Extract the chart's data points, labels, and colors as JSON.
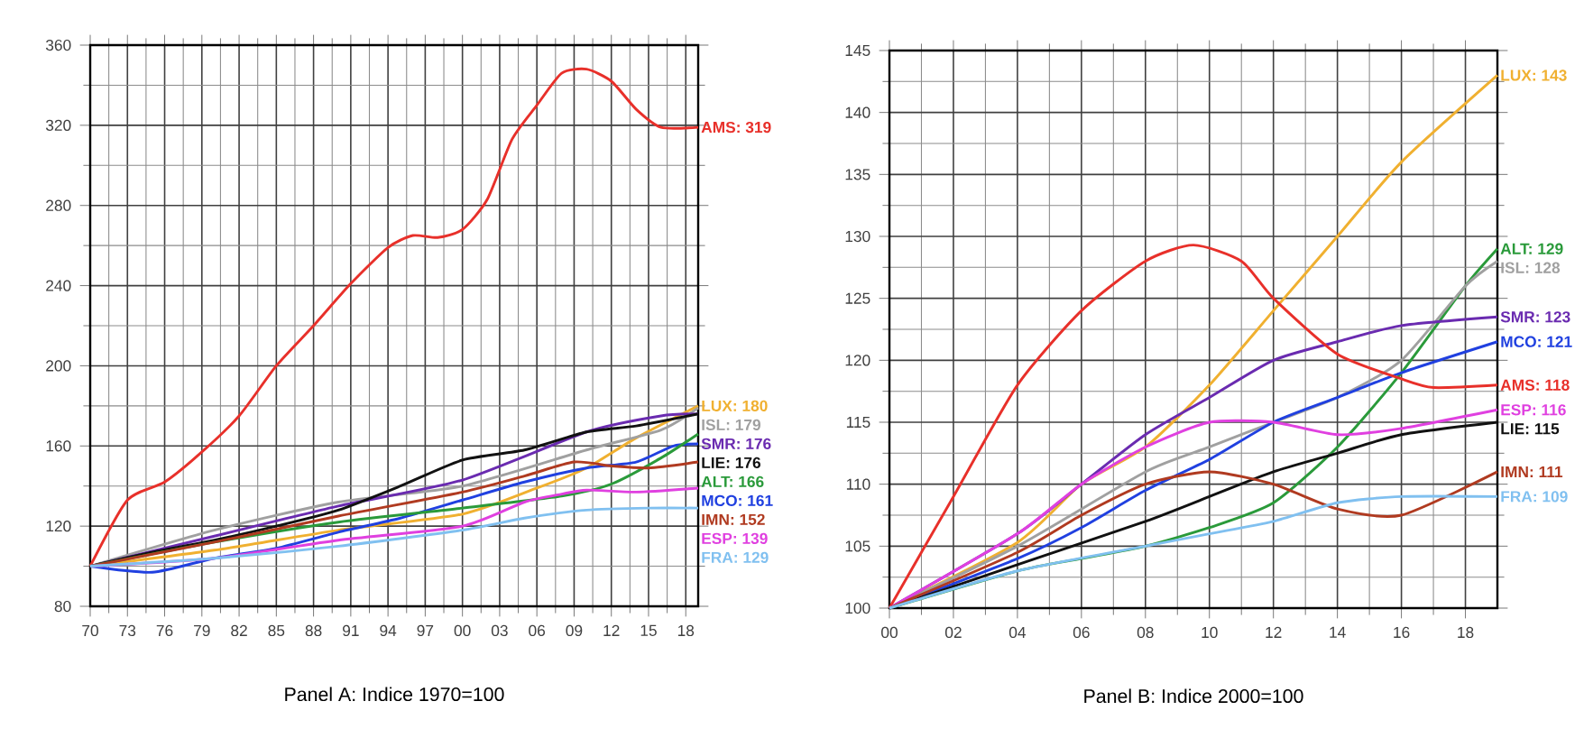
{
  "chart_data": [
    {
      "type": "line",
      "title": "Panel A: Indice 1970=100",
      "grid": true,
      "xlim": [
        1970,
        2019
      ],
      "ylim": [
        80,
        360
      ],
      "xticks": [
        {
          "value": 1970,
          "label": "70"
        },
        {
          "value": 1973,
          "label": "73"
        },
        {
          "value": 1976,
          "label": "76"
        },
        {
          "value": 1979,
          "label": "79"
        },
        {
          "value": 1982,
          "label": "82"
        },
        {
          "value": 1985,
          "label": "85"
        },
        {
          "value": 1988,
          "label": "88"
        },
        {
          "value": 1991,
          "label": "91"
        },
        {
          "value": 1994,
          "label": "94"
        },
        {
          "value": 1997,
          "label": "97"
        },
        {
          "value": 2000,
          "label": "00"
        },
        {
          "value": 2003,
          "label": "03"
        },
        {
          "value": 2006,
          "label": "06"
        },
        {
          "value": 2009,
          "label": "09"
        },
        {
          "value": 2012,
          "label": "12"
        },
        {
          "value": 2015,
          "label": "15"
        },
        {
          "value": 2018,
          "label": "18"
        }
      ],
      "yticks": [
        80,
        120,
        160,
        200,
        240,
        280,
        320,
        360
      ],
      "series": [
        {
          "name": "AMS: 319",
          "color": "#e8302a",
          "x": [
            1970,
            1973,
            1976,
            1979,
            1982,
            1985,
            1988,
            1991,
            1994,
            1996,
            1998,
            2000,
            2002,
            2004,
            2006,
            2008,
            2010,
            2012,
            2014,
            2016,
            2019
          ],
          "values": [
            100,
            133,
            142,
            157,
            175,
            200,
            220,
            241,
            259,
            265,
            264,
            268,
            283,
            313,
            330,
            346,
            348,
            342,
            328,
            319,
            319
          ]
        },
        {
          "name": "LUX: 180",
          "color": "#f0b030",
          "x": [
            1970,
            1980,
            1990,
            2000,
            2006,
            2010,
            2014,
            2019
          ],
          "values": [
            100,
            108,
            118,
            126,
            139,
            149,
            164,
            180
          ]
        },
        {
          "name": "ISL: 179",
          "color": "#a0a0a0",
          "x": [
            1970,
            1980,
            1990,
            2000,
            2010,
            2016,
            2019
          ],
          "values": [
            100,
            118,
            132,
            140,
            158,
            168,
            179
          ]
        },
        {
          "name": "SMR: 176",
          "color": "#6a2bb0",
          "x": [
            1970,
            1980,
            1990,
            2000,
            2010,
            2016,
            2019
          ],
          "values": [
            100,
            115,
            130,
            143,
            167,
            175,
            176
          ]
        },
        {
          "name": "LIE: 176",
          "color": "#111111",
          "x": [
            1970,
            1975,
            1980,
            1985,
            1990,
            1995,
            2000,
            2005,
            2010,
            2014,
            2019
          ],
          "values": [
            100,
            107,
            113,
            120,
            128,
            140,
            153,
            158,
            167,
            170,
            176
          ]
        },
        {
          "name": "MCO: 161",
          "color": "#2040e0",
          "x": [
            1970,
            1975,
            1980,
            1985,
            1990,
            1995,
            2000,
            2005,
            2010,
            2014,
            2017,
            2019
          ],
          "values": [
            100,
            97,
            104,
            109,
            117,
            124,
            133,
            142,
            149,
            152,
            160,
            161
          ]
        },
        {
          "name": "ALT: 166",
          "color": "#2a9a3a",
          "x": [
            1970,
            1980,
            1990,
            2000,
            2008,
            2012,
            2016,
            2019
          ],
          "values": [
            100,
            112,
            122,
            129,
            135,
            141,
            154,
            166
          ]
        },
        {
          "name": "IMN: 152",
          "color": "#b03a20",
          "x": [
            1970,
            1980,
            1990,
            2000,
            2005,
            2009,
            2012,
            2015,
            2019
          ],
          "values": [
            100,
            112,
            125,
            137,
            145,
            152,
            150,
            149,
            152
          ]
        },
        {
          "name": "ESP: 139",
          "color": "#e040e0",
          "x": [
            1970,
            1980,
            1990,
            2000,
            2005,
            2008,
            2010,
            2014,
            2019
          ],
          "values": [
            100,
            104,
            113,
            120,
            132,
            136,
            138,
            137,
            139
          ]
        },
        {
          "name": "FRA: 129",
          "color": "#80c0f0",
          "x": [
            1970,
            1980,
            1990,
            2000,
            2005,
            2010,
            2015,
            2019
          ],
          "values": [
            100,
            104,
            110,
            118,
            124,
            128,
            129,
            129
          ]
        }
      ]
    },
    {
      "type": "line",
      "title": "Panel B: Indice 2000=100",
      "grid": true,
      "xlim": [
        2000,
        2019
      ],
      "ylim": [
        100,
        145
      ],
      "xticks": [
        {
          "value": 2000,
          "label": "00"
        },
        {
          "value": 2002,
          "label": "02"
        },
        {
          "value": 2004,
          "label": "04"
        },
        {
          "value": 2006,
          "label": "06"
        },
        {
          "value": 2008,
          "label": "08"
        },
        {
          "value": 2010,
          "label": "10"
        },
        {
          "value": 2012,
          "label": "12"
        },
        {
          "value": 2014,
          "label": "14"
        },
        {
          "value": 2016,
          "label": "16"
        },
        {
          "value": 2018,
          "label": "18"
        }
      ],
      "yticks": [
        100,
        105,
        110,
        115,
        120,
        125,
        130,
        135,
        140,
        145
      ],
      "series": [
        {
          "name": "LUX: 143",
          "color": "#f0b030",
          "x": [
            2000,
            2004,
            2006,
            2008,
            2010,
            2012,
            2014,
            2016,
            2019
          ],
          "values": [
            100,
            105.3,
            110,
            113,
            118,
            124,
            130,
            136,
            143
          ]
        },
        {
          "name": "ALT: 129",
          "color": "#2a9a3a",
          "x": [
            2000,
            2004,
            2006,
            2008,
            2010,
            2012,
            2014,
            2016,
            2018,
            2019
          ],
          "values": [
            100,
            103,
            104,
            105,
            106.5,
            108.5,
            113,
            119,
            126,
            129
          ]
        },
        {
          "name": "ISL: 128",
          "color": "#a0a0a0",
          "x": [
            2000,
            2004,
            2008,
            2010,
            2012,
            2014,
            2016,
            2018,
            2019
          ],
          "values": [
            100,
            105,
            111,
            113,
            115,
            117,
            120,
            126,
            128
          ]
        },
        {
          "name": "SMR: 123",
          "color": "#6a2bb0",
          "x": [
            2000,
            2004,
            2006,
            2008,
            2010,
            2012,
            2014,
            2016,
            2019
          ],
          "values": [
            100,
            106,
            110,
            114,
            117,
            120,
            121.5,
            122.8,
            123.5
          ]
        },
        {
          "name": "MCO: 121",
          "color": "#2040e0",
          "x": [
            2000,
            2004,
            2006,
            2008,
            2010,
            2012,
            2014,
            2016,
            2019
          ],
          "values": [
            100,
            104,
            106.5,
            109.5,
            112,
            115,
            117,
            119,
            121.5
          ]
        },
        {
          "name": "AMS: 118",
          "color": "#e8302a",
          "x": [
            2000,
            2002,
            2004,
            2006,
            2008,
            2009.5,
            2011,
            2012,
            2014,
            2016,
            2017,
            2019
          ],
          "values": [
            100,
            109,
            118,
            124,
            128,
            129.3,
            128,
            125,
            120.5,
            118.5,
            117.8,
            118
          ]
        },
        {
          "name": "ESP: 116",
          "color": "#e040e0",
          "x": [
            2000,
            2004,
            2006,
            2008,
            2010,
            2012,
            2014,
            2016,
            2019
          ],
          "values": [
            100,
            106,
            110,
            113,
            115,
            115,
            114,
            114.5,
            116
          ]
        },
        {
          "name": "LIE: 115",
          "color": "#111111",
          "x": [
            2000,
            2004,
            2008,
            2010,
            2012,
            2014,
            2016,
            2019
          ],
          "values": [
            100,
            103.5,
            107,
            109,
            111,
            112.5,
            114,
            115
          ]
        },
        {
          "name": "IMN: 111",
          "color": "#b03a20",
          "x": [
            2000,
            2004,
            2006,
            2008,
            2010,
            2012,
            2014,
            2016,
            2019
          ],
          "values": [
            100,
            104.5,
            107.5,
            110,
            111,
            110,
            108,
            107.5,
            111
          ]
        },
        {
          "name": "FRA: 109",
          "color": "#80c0f0",
          "x": [
            2000,
            2004,
            2008,
            2010,
            2012,
            2014,
            2016,
            2019
          ],
          "values": [
            100,
            103,
            105,
            106,
            107,
            108.5,
            109,
            109
          ]
        }
      ]
    }
  ]
}
